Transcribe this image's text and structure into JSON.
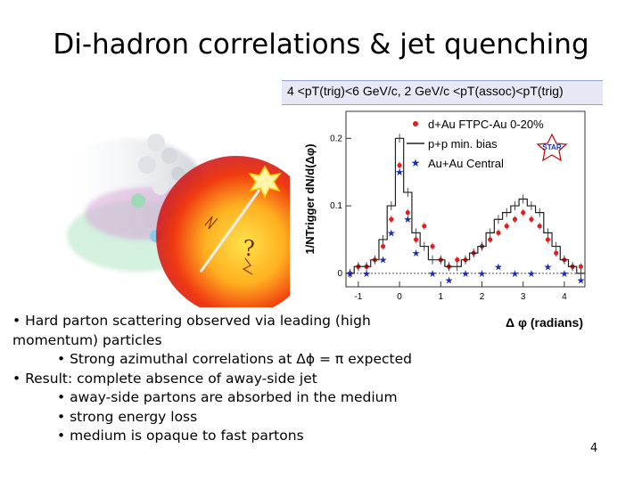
{
  "slide": {
    "title": "Di-hadron correlations & jet quenching",
    "page_number": "4",
    "question_mark": "?",
    "bullets": [
      {
        "level": 1,
        "text": "• Hard parton scattering observed via leading (high"
      },
      {
        "level": 1,
        "text": "momentum) particles"
      },
      {
        "level": 2,
        "text": "• Strong azimuthal correlations at Δϕ = π expected"
      },
      {
        "level": 1,
        "text": "• Result: complete absence of away-side jet"
      },
      {
        "level": 2,
        "text": "• away-side partons are absorbed in the medium"
      },
      {
        "level": 2,
        "text": "• strong energy loss"
      },
      {
        "level": 2,
        "text": "• medium is opaque to fast partons"
      }
    ]
  },
  "chart_data": {
    "type": "scatter",
    "title": "4 <pT(trig)<6 GeV/c, 2 GeV/c <pT(assoc)<pT(trig)",
    "xlabel": "Δ φ (radians)",
    "ylabel": "1/NTrigger dN/d(Δφ)",
    "xlim": [
      -1.3,
      4.5
    ],
    "ylim": [
      -0.02,
      0.24
    ],
    "x_ticks": [
      "-1",
      "0",
      "1",
      "2",
      "3",
      "4"
    ],
    "y_ticks": [
      "0",
      "0.1",
      "0.2"
    ],
    "logo": "STAR",
    "legend_position": "top-right",
    "series": [
      {
        "name": "d+Au FTPC-Au 0-20%",
        "marker": "circle",
        "color": "#e02020",
        "x": [
          -1.2,
          -1.0,
          -0.8,
          -0.6,
          -0.4,
          -0.2,
          0.0,
          0.2,
          0.4,
          0.6,
          0.8,
          1.0,
          1.2,
          1.4,
          1.6,
          1.8,
          2.0,
          2.2,
          2.4,
          2.6,
          2.8,
          3.0,
          3.2,
          3.4,
          3.6,
          3.8,
          4.0,
          4.2,
          4.4
        ],
        "y": [
          0.0,
          0.01,
          0.01,
          0.02,
          0.04,
          0.08,
          0.16,
          0.09,
          0.05,
          0.07,
          0.04,
          0.02,
          0.01,
          0.02,
          0.02,
          0.03,
          0.04,
          0.05,
          0.06,
          0.07,
          0.08,
          0.09,
          0.08,
          0.07,
          0.05,
          0.03,
          0.02,
          0.01,
          0.01
        ]
      },
      {
        "name": "p+p min. bias",
        "marker": "line",
        "color": "#222222",
        "x": [
          -1.2,
          -1.0,
          -0.8,
          -0.6,
          -0.4,
          -0.2,
          0.0,
          0.2,
          0.4,
          0.6,
          0.8,
          1.0,
          1.2,
          1.4,
          1.6,
          1.8,
          2.0,
          2.2,
          2.4,
          2.6,
          2.8,
          3.0,
          3.2,
          3.4,
          3.6,
          3.8,
          4.0,
          4.2,
          4.4
        ],
        "y": [
          0.0,
          0.01,
          0.01,
          0.02,
          0.05,
          0.1,
          0.2,
          0.12,
          0.06,
          0.04,
          0.02,
          0.02,
          0.01,
          0.01,
          0.02,
          0.03,
          0.04,
          0.06,
          0.08,
          0.09,
          0.1,
          0.11,
          0.1,
          0.09,
          0.06,
          0.04,
          0.02,
          0.01,
          0.0
        ]
      },
      {
        "name": "Au+Au Central",
        "marker": "star",
        "color": "#1a2ea8",
        "x": [
          -1.2,
          -0.8,
          -0.4,
          -0.2,
          0.0,
          0.2,
          0.4,
          0.8,
          1.2,
          1.6,
          2.0,
          2.4,
          2.8,
          3.2,
          3.6,
          4.0,
          4.4
        ],
        "y": [
          0.0,
          0.0,
          0.02,
          0.06,
          0.15,
          0.08,
          0.03,
          0.0,
          -0.01,
          0.0,
          0.0,
          0.01,
          0.0,
          0.0,
          0.01,
          0.0,
          -0.01
        ]
      }
    ]
  }
}
